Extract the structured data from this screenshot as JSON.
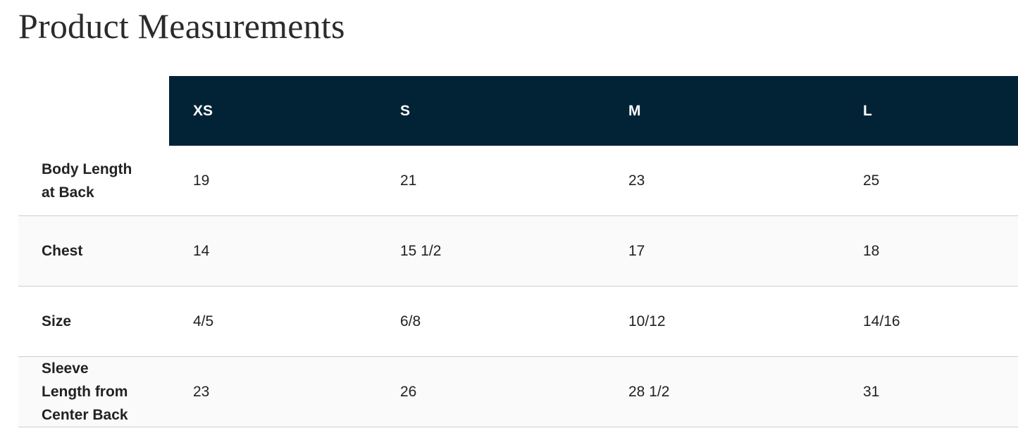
{
  "title": "Product Measurements",
  "table": {
    "columns": [
      "XS",
      "S",
      "M",
      "L"
    ],
    "rows": [
      {
        "label": "Body Length at Back",
        "values": [
          "19",
          "21",
          "23",
          "25"
        ]
      },
      {
        "label": "Chest",
        "values": [
          "14",
          "15 1/2",
          "17",
          "18"
        ]
      },
      {
        "label": "Size",
        "values": [
          "4/5",
          "6/8",
          "10/12",
          "14/16"
        ]
      },
      {
        "label": "Sleeve Length from Center Back",
        "values": [
          "23",
          "26",
          "28 1/2",
          "31"
        ]
      }
    ]
  }
}
